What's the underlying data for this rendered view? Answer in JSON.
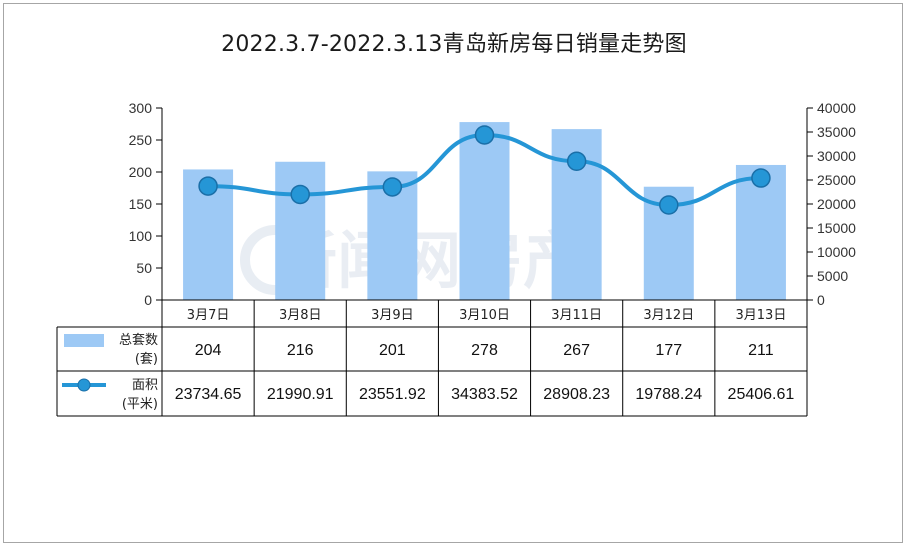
{
  "title": "2022.3.7-2022.3.13青岛新房每日销量走势图",
  "watermark": "新闻网房产",
  "chart_data": {
    "type": "bar",
    "categories": [
      "3月7日",
      "3月8日",
      "3月9日",
      "3月10日",
      "3月11日",
      "3月12日",
      "3月13日"
    ],
    "series": [
      {
        "name": "总套数(套)",
        "legend_lines": [
          "总套数",
          "(套)"
        ],
        "kind": "bar",
        "axis": "left",
        "color": "#9dc9f5",
        "values": [
          204,
          216,
          201,
          278,
          267,
          177,
          211
        ],
        "labels": [
          "204",
          "216",
          "201",
          "278",
          "267",
          "177",
          "211"
        ]
      },
      {
        "name": "面积(平米)",
        "legend_lines": [
          "面积",
          "(平米)"
        ],
        "kind": "line",
        "axis": "right",
        "color": "#2596d6",
        "values": [
          23734.65,
          21990.91,
          23551.92,
          34383.52,
          28908.23,
          19788.24,
          25406.61
        ],
        "labels": [
          "23734.65",
          "21990.91",
          "23551.92",
          "34383.52",
          "28908.23",
          "19788.24",
          "25406.61"
        ]
      }
    ],
    "y_left": {
      "range": [
        0,
        300
      ],
      "ticks": [
        "0",
        "50",
        "100",
        "150",
        "200",
        "250",
        "300"
      ]
    },
    "y_right": {
      "range": [
        0,
        40000
      ],
      "ticks": [
        "0",
        "5000",
        "10000",
        "15000",
        "20000",
        "25000",
        "30000",
        "35000",
        "40000"
      ]
    },
    "grid": false,
    "legend": "data-table"
  }
}
